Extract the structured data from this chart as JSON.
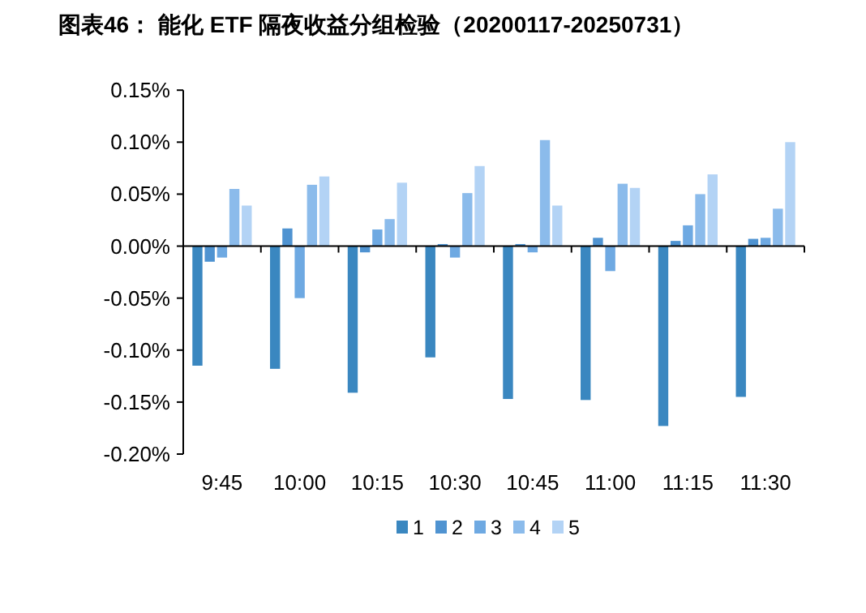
{
  "chart_data": {
    "type": "bar",
    "title": "图表46： 能化 ETF 隔夜收益分组检验（20200117-20250731）",
    "categories": [
      "9:45",
      "10:00",
      "10:15",
      "10:30",
      "10:45",
      "11:00",
      "11:15",
      "11:30"
    ],
    "series": [
      {
        "name": "1",
        "color": "#3a87c0",
        "values": [
          -0.115,
          -0.118,
          -0.141,
          -0.107,
          -0.147,
          -0.148,
          -0.173,
          -0.145
        ]
      },
      {
        "name": "2",
        "color": "#4f93d1",
        "values": [
          -0.015,
          0.017,
          -0.006,
          0.002,
          0.002,
          0.008,
          0.005,
          0.007
        ]
      },
      {
        "name": "3",
        "color": "#6ea9e2",
        "values": [
          -0.011,
          -0.05,
          0.016,
          -0.011,
          -0.006,
          -0.024,
          0.02,
          0.008
        ]
      },
      {
        "name": "4",
        "color": "#8bbbeb",
        "values": [
          0.055,
          0.059,
          0.026,
          0.051,
          0.102,
          0.06,
          0.05,
          0.036
        ]
      },
      {
        "name": "5",
        "color": "#b3d3f5",
        "values": [
          0.039,
          0.067,
          0.061,
          0.077,
          0.039,
          0.056,
          0.069,
          0.1
        ]
      }
    ],
    "ylim": [
      -0.2,
      0.15
    ],
    "yticks": [
      {
        "value": -0.2,
        "label": "-0.20%"
      },
      {
        "value": -0.15,
        "label": "-0.15%"
      },
      {
        "value": -0.1,
        "label": "-0.10%"
      },
      {
        "value": -0.05,
        "label": "-0.05%"
      },
      {
        "value": 0,
        "label": "0.00%"
      },
      {
        "value": 0.05,
        "label": "0.05%"
      },
      {
        "value": 0.1,
        "label": "0.10%"
      },
      {
        "value": 0.15,
        "label": "0.15%"
      }
    ],
    "legend": "bottom"
  }
}
